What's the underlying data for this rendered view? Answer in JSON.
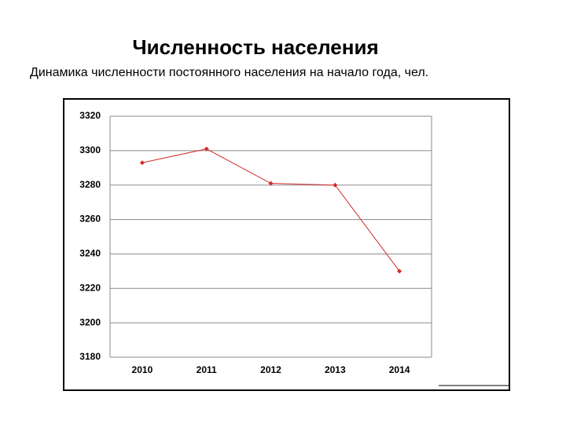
{
  "chart_data": {
    "type": "line",
    "title": "Численность населения",
    "subtitle": "Динамика численности постоянного населения на начало года, чел.",
    "categories": [
      "2010",
      "2011",
      "2012",
      "2013",
      "2014"
    ],
    "values": [
      3293,
      3301,
      3281,
      3280,
      3230
    ],
    "color": "#d42a2a",
    "ylim": [
      3180,
      3320
    ],
    "yticks": [
      3180,
      3200,
      3220,
      3240,
      3260,
      3280,
      3300,
      3320
    ],
    "grid": true
  }
}
